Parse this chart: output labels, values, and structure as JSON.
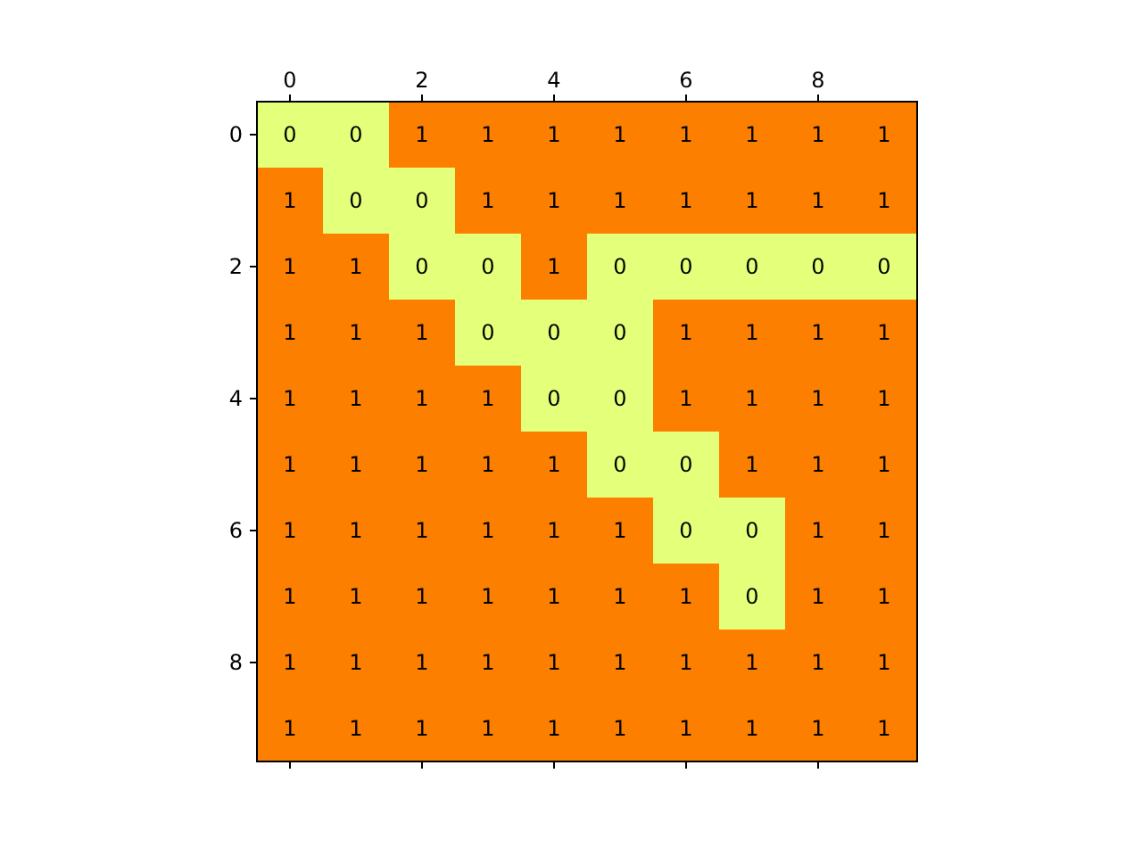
{
  "chart_data": {
    "type": "heatmap",
    "categories": [
      "0",
      null,
      "2",
      null,
      "4",
      null,
      "6",
      null,
      "8",
      null
    ],
    "y_categories": [
      "0",
      null,
      "2",
      null,
      "4",
      null,
      "6",
      null,
      "8",
      null
    ],
    "cells": [
      [
        0,
        0,
        1,
        1,
        1,
        1,
        1,
        1,
        1,
        1
      ],
      [
        1,
        0,
        0,
        1,
        1,
        1,
        1,
        1,
        1,
        1
      ],
      [
        1,
        1,
        0,
        0,
        1,
        0,
        0,
        0,
        0,
        0
      ],
      [
        1,
        1,
        1,
        0,
        0,
        0,
        1,
        1,
        1,
        1
      ],
      [
        1,
        1,
        1,
        1,
        0,
        0,
        1,
        1,
        1,
        1
      ],
      [
        1,
        1,
        1,
        1,
        1,
        0,
        0,
        1,
        1,
        1
      ],
      [
        1,
        1,
        1,
        1,
        1,
        1,
        0,
        0,
        1,
        1
      ],
      [
        1,
        1,
        1,
        1,
        1,
        1,
        1,
        0,
        1,
        1
      ],
      [
        1,
        1,
        1,
        1,
        1,
        1,
        1,
        1,
        1,
        1
      ],
      [
        1,
        1,
        1,
        1,
        1,
        1,
        1,
        1,
        1,
        1
      ]
    ],
    "colors": [
      "#e4ff7a",
      "#fc7f00"
    ],
    "data_labels": true
  }
}
